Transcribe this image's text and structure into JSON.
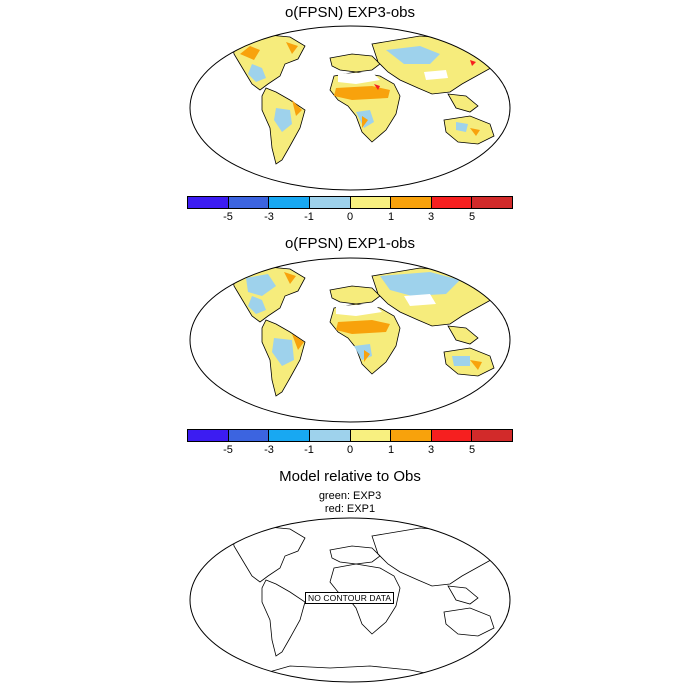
{
  "panels": [
    {
      "title": "o(FPSN) EXP3-obs"
    },
    {
      "title": "o(FPSN) EXP1-obs"
    },
    {
      "title": "Model relative to Obs",
      "subtitle_1": "green: EXP3",
      "subtitle_2": "red: EXP1",
      "no_data_label": "NO CONTOUR DATA"
    }
  ],
  "colorbar": {
    "colors": [
      "#3c1cf2",
      "#3c64e0",
      "#18a8f2",
      "#9ed2ec",
      "#f8f080",
      "#f8a20c",
      "#f61f1f",
      "#d22a2a"
    ],
    "tick_labels": [
      "-5",
      "-3",
      "-1",
      "0",
      "1",
      "3",
      "5"
    ],
    "label_positions": [
      1,
      2,
      3,
      4,
      5,
      6,
      7
    ]
  },
  "map_colors": {
    "land": "#f6ec7c",
    "blue": "#9ed2ec",
    "orange": "#f8a20c",
    "red": "#f61f1f",
    "outline": "#000000"
  }
}
